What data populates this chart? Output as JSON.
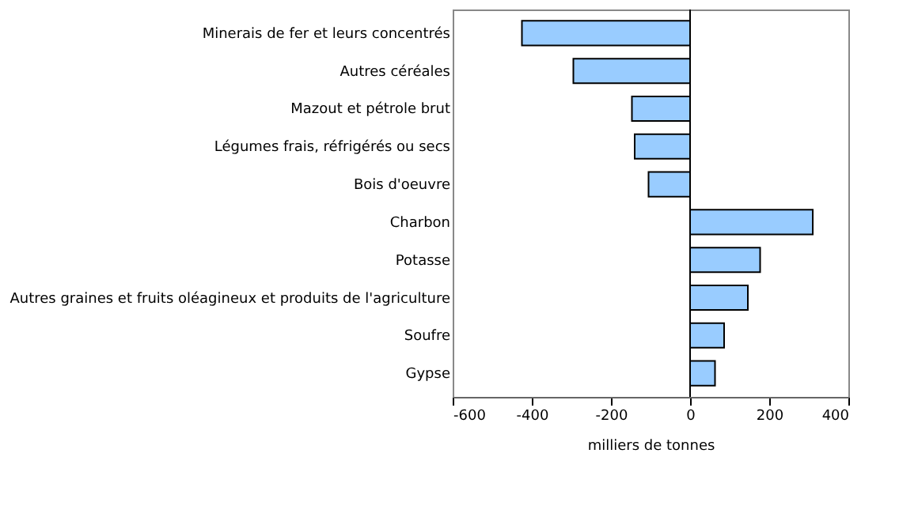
{
  "chart_data": {
    "type": "bar",
    "orientation": "horizontal",
    "xlabel": "milliers de tonnes",
    "categories": [
      "Minerais de fer et leurs concentrés",
      "Autres céréales",
      "Mazout et pétrole brut",
      "Légumes frais, réfrigérés ou secs",
      "Bois d'oeuvre",
      "Charbon",
      "Potasse",
      "Autres graines et fruits oléagineux et produits de l'agriculture",
      "Soufre",
      "Gypse"
    ],
    "values": [
      -425,
      -295,
      -147,
      -140,
      -105,
      310,
      177,
      146,
      86,
      63
    ],
    "color": "#99ccff",
    "xlim": [
      -600,
      400
    ],
    "xticks": [
      -600,
      -400,
      -200,
      0,
      200,
      400
    ],
    "grid": false,
    "ref_lines": [
      {
        "axis": "x",
        "value": 0,
        "color": "#000000"
      }
    ]
  }
}
